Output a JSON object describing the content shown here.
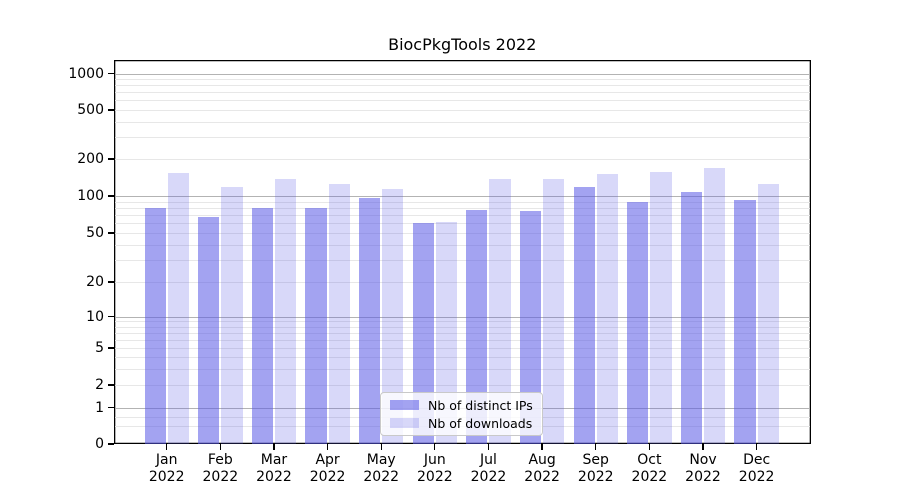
{
  "title": "BiocPkgTools 2022",
  "chart_data": {
    "type": "bar",
    "title": "BiocPkgTools 2022",
    "categories": [
      "Jan 2022",
      "Feb 2022",
      "Mar 2022",
      "Apr 2022",
      "May 2022",
      "Jun 2022",
      "Jul 2022",
      "Aug 2022",
      "Sep 2022",
      "Oct 2022",
      "Nov 2022",
      "Dec 2022"
    ],
    "x_tick_line1": [
      "Jan",
      "Feb",
      "Mar",
      "Apr",
      "May",
      "Jun",
      "Jul",
      "Aug",
      "Sep",
      "Oct",
      "Nov",
      "Dec"
    ],
    "x_tick_line2": "2022",
    "series": [
      {
        "name": "Nb of distinct IPs",
        "color": "rgba(88,88,230,0.55)",
        "values": [
          80,
          67,
          80,
          80,
          96,
          60,
          77,
          75,
          118,
          89,
          107,
          92
        ]
      },
      {
        "name": "Nb of downloads",
        "color": "rgba(88,88,230,0.23)",
        "values": [
          155,
          119,
          137,
          125,
          114,
          62,
          137,
          138,
          152,
          157,
          169,
          126
        ]
      }
    ],
    "y_axis": {
      "scale": "asinh-like (linear 0-1, logarithmic above)",
      "ticks": [
        1000,
        500,
        200,
        100,
        50,
        20,
        10,
        5,
        2,
        1,
        0
      ],
      "major_grid_values": [
        1,
        10,
        100,
        1000
      ],
      "minor_grid_values": [
        0.5,
        0.75,
        2,
        3,
        4,
        5,
        6,
        7,
        8,
        9,
        20,
        30,
        40,
        50,
        60,
        70,
        80,
        90,
        200,
        300,
        400,
        500,
        600,
        700,
        800,
        900
      ],
      "range": [
        0,
        1000
      ]
    },
    "legend": {
      "position": "lower center",
      "entries": [
        "Nb of distinct IPs",
        "Nb of downloads"
      ]
    },
    "grid": "both",
    "colors": {
      "major_grid": "#b3b3b3",
      "minor_grid": "#e7e7e7",
      "spine": "#000000",
      "text": "#000000",
      "background": "#ffffff",
      "bar_dark": "rgba(88,88,230,0.55)",
      "bar_light": "rgba(88,88,230,0.23)"
    }
  }
}
